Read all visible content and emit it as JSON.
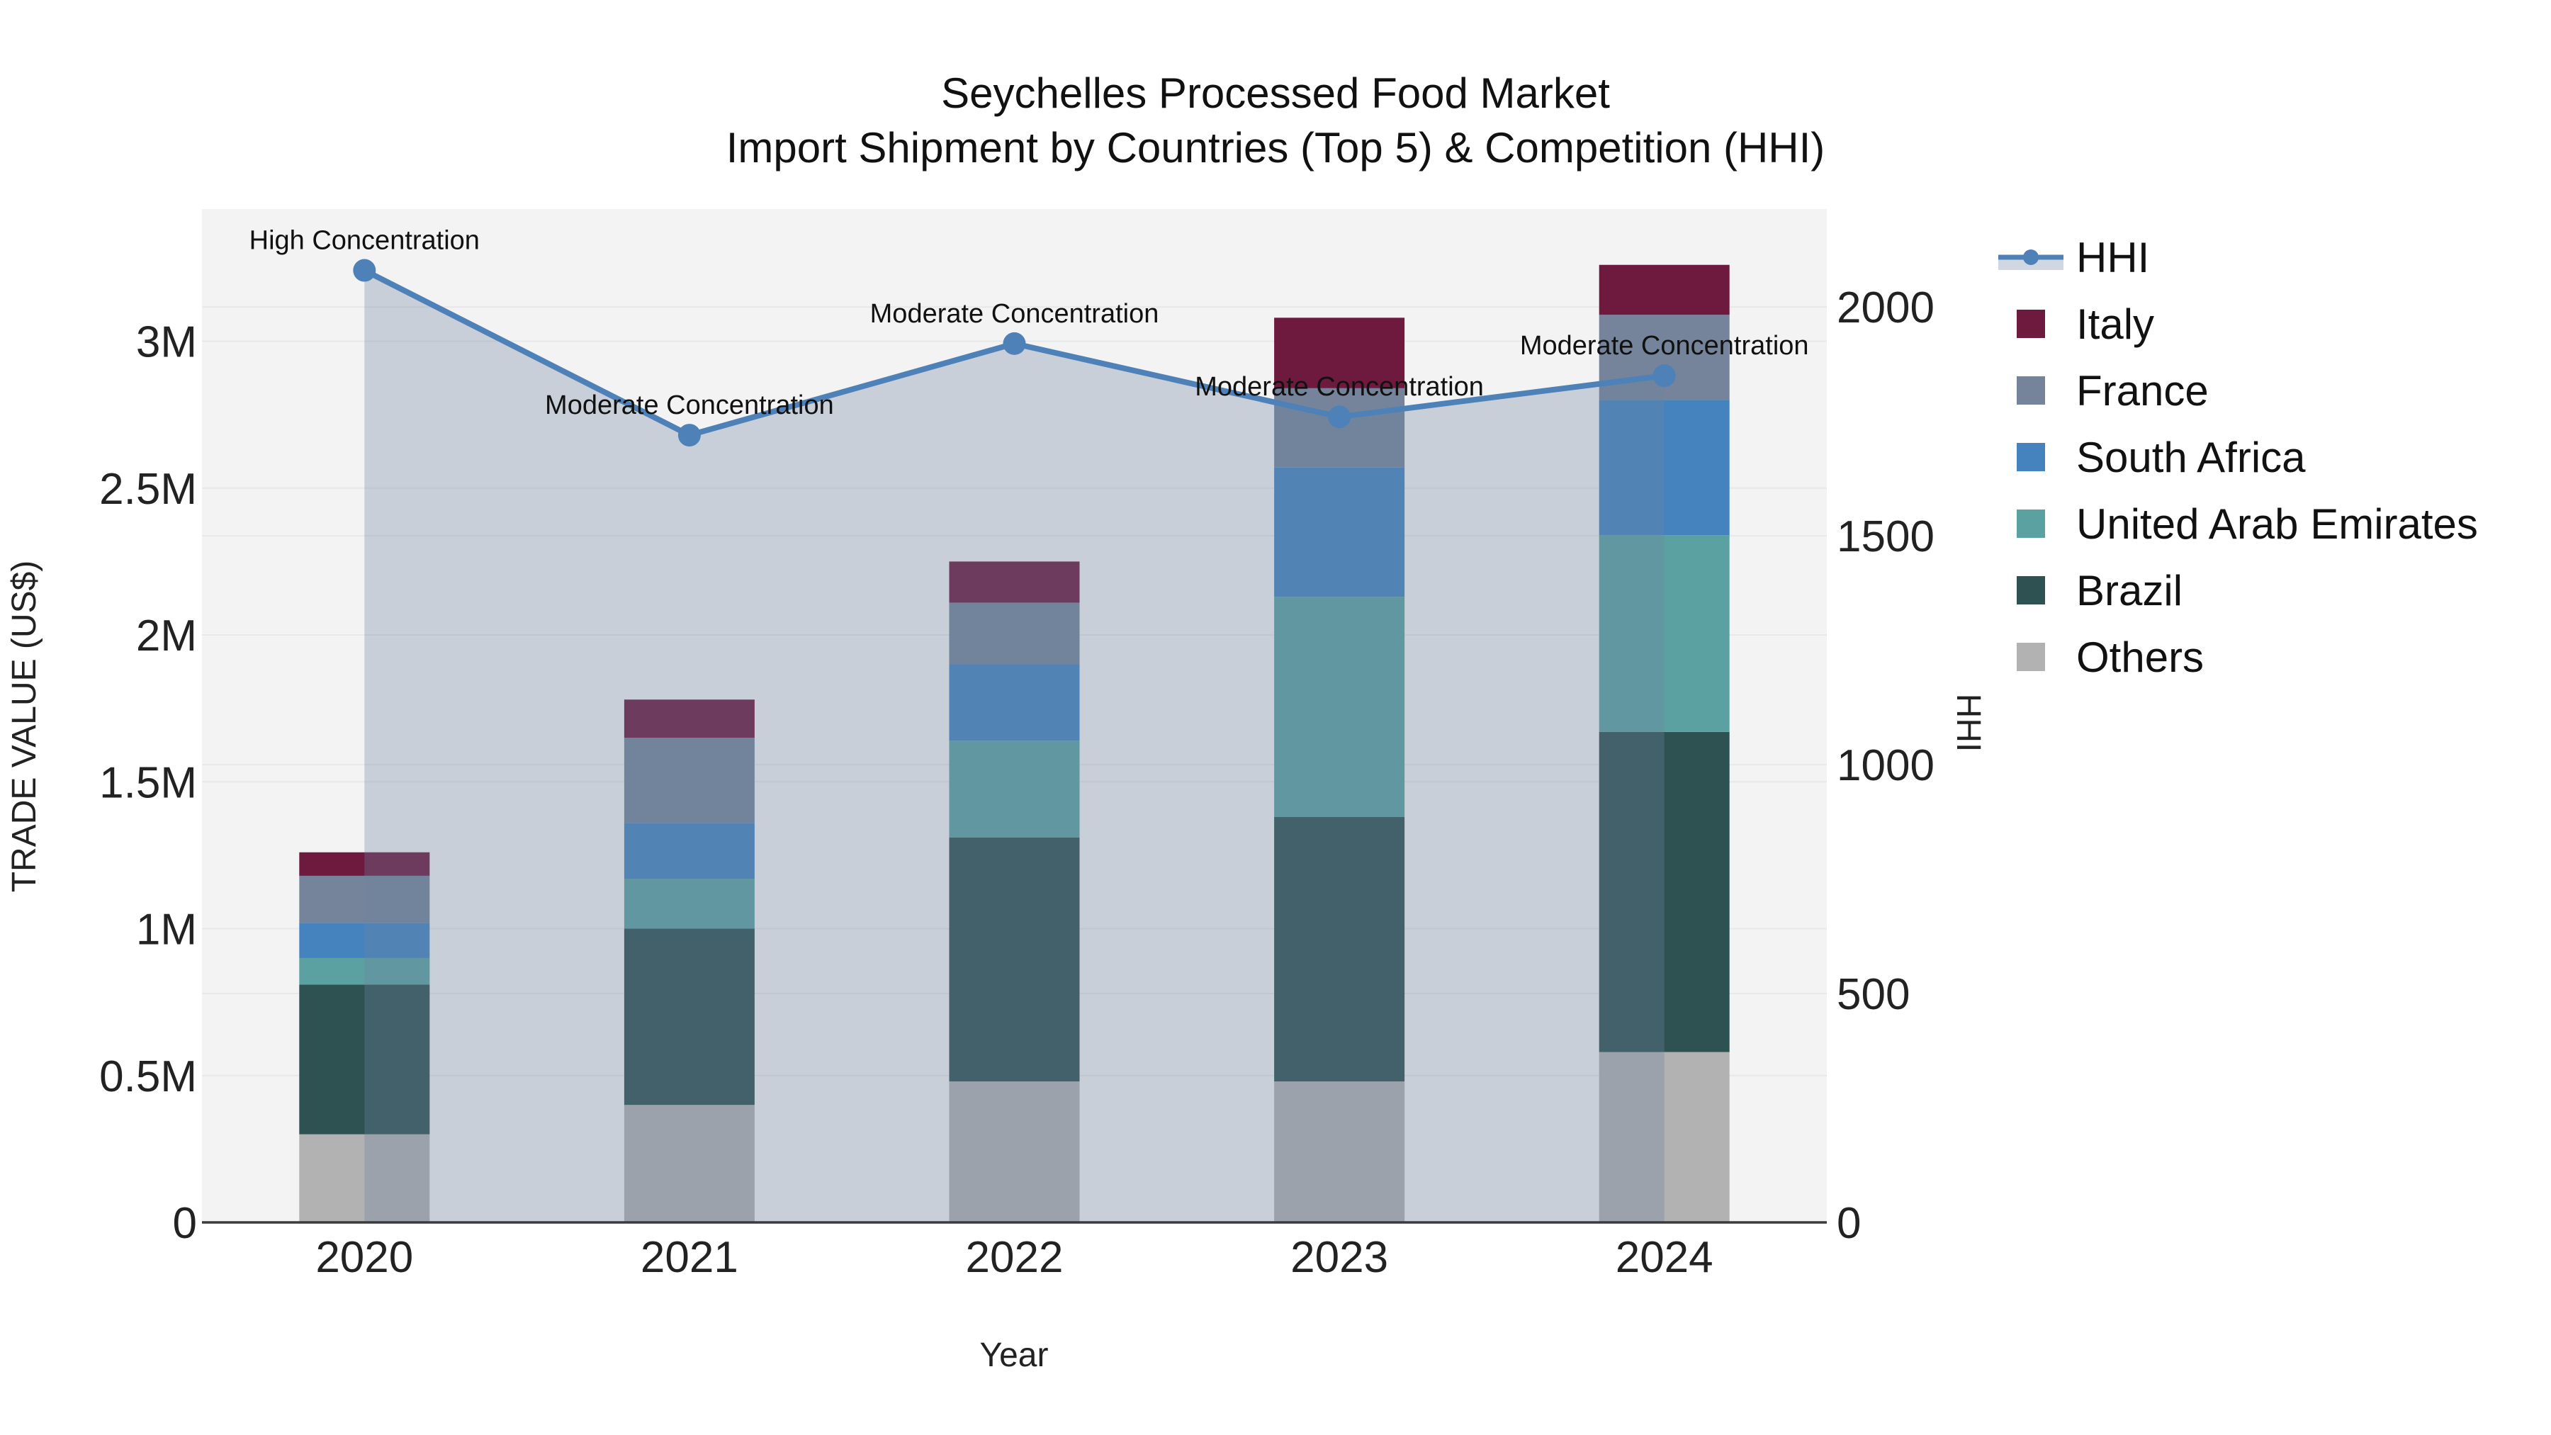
{
  "title": {
    "line1": "Seychelles Processed Food Market",
    "line2": "Import Shipment by Countries (Top 5) & Competition (HHI)"
  },
  "legend": {
    "items": [
      "HHI",
      "Italy",
      "France",
      "South Africa",
      "United Arab Emirates",
      "Brazil",
      "Others"
    ]
  },
  "colors": {
    "Italy": "#6D1A3E",
    "France": "#75849B",
    "South Africa": "#4583BE",
    "United Arab Emirates": "#5CA1A1",
    "Brazil": "#2E5151",
    "Others": "#B2B2B2",
    "hhi_line": "#4E81B8",
    "area_fill": "rgba(110,130,160,0.32)",
    "plot_background": "#F3F3F3",
    "gridline": "#E7E8EA",
    "axis_line": "#3B3B3B"
  },
  "chart_data": {
    "type": "combo-stacked-bar-line",
    "categories": [
      "2020",
      "2021",
      "2022",
      "2023",
      "2024"
    ],
    "bar_unit": "million US$",
    "series": [
      {
        "name": "Others",
        "values": [
          0.3,
          0.4,
          0.48,
          0.48,
          0.58
        ]
      },
      {
        "name": "Brazil",
        "values": [
          0.51,
          0.6,
          0.83,
          0.9,
          1.09
        ]
      },
      {
        "name": "United Arab Emirates",
        "values": [
          0.09,
          0.17,
          0.33,
          0.75,
          0.67
        ]
      },
      {
        "name": "South Africa",
        "values": [
          0.12,
          0.19,
          0.26,
          0.44,
          0.46
        ]
      },
      {
        "name": "France",
        "values": [
          0.16,
          0.29,
          0.21,
          0.27,
          0.29
        ]
      },
      {
        "name": "Italy",
        "values": [
          0.08,
          0.13,
          0.14,
          0.24,
          0.17
        ]
      }
    ],
    "bar_totals": [
      1.26,
      1.78,
      2.25,
      3.08,
      3.26
    ],
    "line_series": {
      "name": "HHI",
      "axis": "right",
      "values": [
        2080,
        1720,
        1920,
        1760,
        1850
      ],
      "area_fill": true
    },
    "annotations": [
      "High Concentration",
      "Moderate Concentration",
      "Moderate Concentration",
      "Moderate Concentration",
      "Moderate Concentration"
    ],
    "x_label": "Year",
    "y_left": {
      "label": "TRADE VALUE (US$)",
      "tick_labels": [
        "0",
        "0.5M",
        "1M",
        "1.5M",
        "2M",
        "2.5M",
        "3M"
      ],
      "tick_values": [
        0,
        0.5,
        1,
        1.5,
        2,
        2.5,
        3
      ],
      "max": 3.45
    },
    "y_right": {
      "label": "HHI",
      "tick_labels": [
        "0",
        "500",
        "1000",
        "1500",
        "2000"
      ],
      "tick_values": [
        0,
        500,
        1000,
        1500,
        2000
      ],
      "max": 2214
    },
    "grid": true,
    "legend_position": "right"
  }
}
